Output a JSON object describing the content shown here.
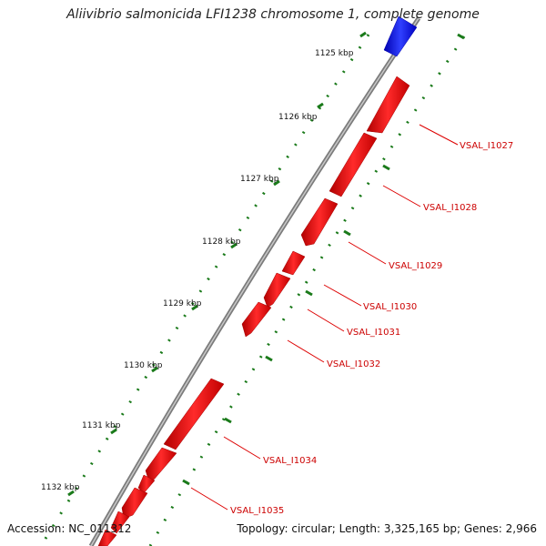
{
  "title": "Aliivibrio salmonicida LFI1238 chromosome 1, complete genome",
  "footer": {
    "accession": "Accession: NC_011312",
    "summary": "Topology: circular; Length: 3,325,165 bp; Genes: 2,966"
  },
  "colors": {
    "backbone": "#888888",
    "forward_strand": "#0000ee",
    "reverse_strand": "#ee0000",
    "gc_ticks": "#1a7a1a",
    "label_line": "#dd0000",
    "label_text": "#cc0000"
  },
  "scale_labels": [
    "1125 kbp",
    "1126 kbp",
    "1127 kbp",
    "1128 kbp",
    "1129 kbp",
    "1130 kbp",
    "1131 kbp",
    "1132 kbp"
  ],
  "gene_labels": [
    "VSAL_I1027",
    "VSAL_I1028",
    "VSAL_I1029",
    "VSAL_I1030",
    "VSAL_I1031",
    "VSAL_I1032",
    "VSAL_I1034",
    "VSAL_I1035"
  ]
}
